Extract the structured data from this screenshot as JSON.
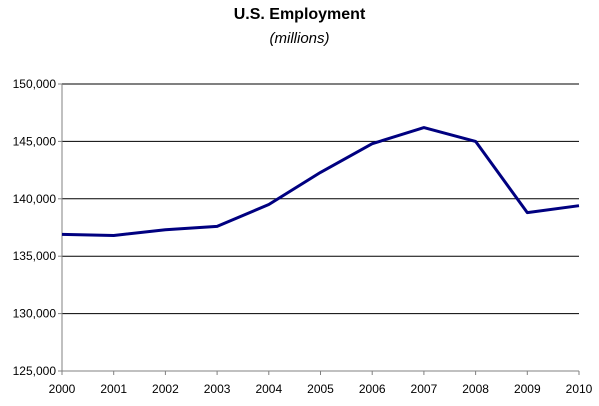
{
  "chart_data": {
    "type": "line",
    "title": "U.S. Employment",
    "subtitle": "(millions)",
    "xlabel": "",
    "ylabel": "",
    "x": [
      "2000",
      "2001",
      "2002",
      "2003",
      "2004",
      "2005",
      "2006",
      "2007",
      "2008",
      "2009",
      "2010"
    ],
    "series": [
      {
        "values": [
          136900,
          136800,
          137300,
          137600,
          139500,
          142300,
          144800,
          146200,
          145000,
          138800,
          139400
        ],
        "color": "#000080"
      }
    ],
    "ylim": [
      125000,
      150000
    ],
    "yticks": [
      "125,000",
      "130,000",
      "135,000",
      "140,000",
      "145,000",
      "150,000"
    ],
    "ytick_values": [
      125000,
      130000,
      135000,
      140000,
      145000,
      150000
    ],
    "grid": true,
    "legend": "none"
  }
}
